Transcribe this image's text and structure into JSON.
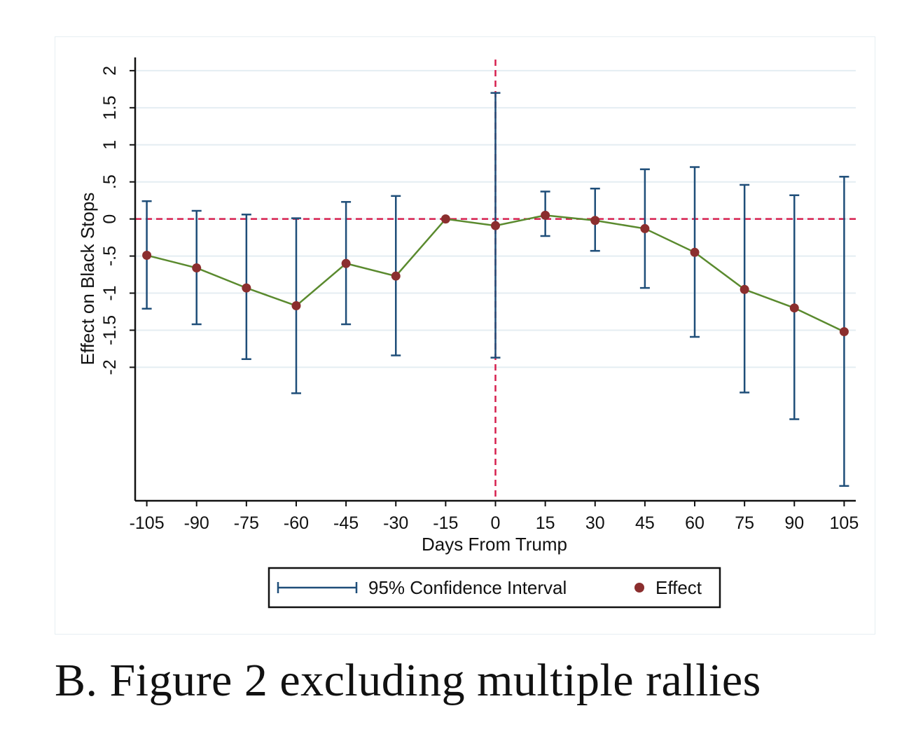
{
  "caption": "B. Figure 2 excluding multiple rallies",
  "chart_data": {
    "type": "scatter",
    "xlabel": "Days From Trump",
    "ylabel": "Effect on Black Stops",
    "x": [
      -105,
      -90,
      -75,
      -60,
      -45,
      -30,
      -15,
      0,
      15,
      30,
      45,
      60,
      75,
      90,
      105
    ],
    "x_tick_labels": [
      "-105",
      "-90",
      "-75",
      "-60",
      "-45",
      "-30",
      "-15",
      "0",
      "15",
      "30",
      "45",
      "60",
      "75",
      "90",
      "105"
    ],
    "y_ticks": [
      -2,
      -1.5,
      -1,
      -0.5,
      0,
      0.5,
      1,
      1.5,
      2
    ],
    "y_tick_labels": [
      "-2",
      "-1.5",
      "-1",
      "-.5",
      "0",
      ".5",
      "1",
      "1.5",
      "2"
    ],
    "xlim": [
      -108.5,
      108.5
    ],
    "ylim": [
      -3.8,
      2.15
    ],
    "grid": true,
    "legend_position": "bottom",
    "series": [
      {
        "name": "Effect",
        "color": "#8b2e2e",
        "line_color": "#5a8a2e",
        "values": [
          -0.49,
          -0.66,
          -0.93,
          -1.17,
          -0.6,
          -0.77,
          0.0,
          -0.09,
          0.05,
          -0.02,
          -0.13,
          -0.45,
          -0.95,
          -1.2,
          -1.52
        ]
      },
      {
        "name": "95% Confidence Interval",
        "color": "#1f4e79",
        "lower": [
          -1.21,
          -1.42,
          -1.89,
          -2.35,
          -1.42,
          -1.84,
          0.0,
          -1.87,
          -0.23,
          -0.43,
          -0.93,
          -1.59,
          -2.34,
          -2.7,
          -3.6
        ],
        "upper": [
          0.24,
          0.11,
          0.06,
          0.01,
          0.23,
          0.31,
          0.0,
          1.7,
          0.37,
          0.41,
          0.67,
          0.7,
          0.46,
          0.32,
          0.57
        ]
      }
    ],
    "reference_lines": {
      "y": 0,
      "x": 0,
      "color": "#d6204f",
      "style": "dashed"
    },
    "colors": {
      "grid": "#e4edf2",
      "axis": "#111111"
    }
  }
}
